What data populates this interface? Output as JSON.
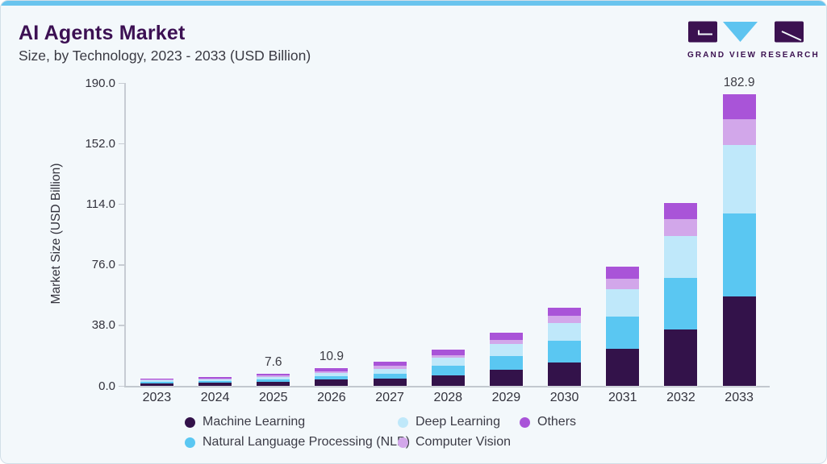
{
  "header": {
    "title": "AI Agents Market",
    "subtitle": "Size, by Technology, 2023 - 2033 (USD Billion)",
    "logo_text": "GRAND VIEW RESEARCH"
  },
  "colors": {
    "accent_strip": "#69c4ee",
    "title": "#3c1053",
    "logo_dark": "#3b1150",
    "logo_blue": "#5ec4f0",
    "axis_line": "#c7ccd3"
  },
  "chart_data": {
    "type": "bar",
    "stacked": true,
    "title": "AI Agents Market Size, by Technology, 2023 - 2033 (USD Billion)",
    "xlabel": "",
    "ylabel": "Market Size (USD Billion)",
    "ylim": [
      0,
      190
    ],
    "ytick_labels": [
      "0.0",
      "38.0",
      "76.0",
      "114.0",
      "152.0",
      "190.0"
    ],
    "grid": false,
    "legend_position": "bottom",
    "categories": [
      "2023",
      "2024",
      "2025",
      "2026",
      "2027",
      "2028",
      "2029",
      "2030",
      "2031",
      "2032",
      "2033"
    ],
    "series": [
      {
        "name": "Machine Learning",
        "color": "#33124a",
        "values": [
          1.5,
          1.9,
          2.5,
          4.2,
          4.7,
          6.7,
          10.1,
          14.7,
          23.2,
          35.4,
          56.0
        ]
      },
      {
        "name": "Natural Language Processing (NLP)",
        "color": "#5ac7f2",
        "values": [
          1.0,
          1.2,
          1.6,
          2.1,
          3.0,
          5.7,
          8.4,
          13.7,
          20.4,
          32.3,
          52.0
        ]
      },
      {
        "name": "Deep Learning",
        "color": "#bfe8fa",
        "values": [
          0.9,
          1.1,
          1.5,
          1.8,
          3.0,
          5.1,
          7.7,
          10.8,
          17.0,
          26.3,
          43.3
        ]
      },
      {
        "name": "Computer Vision",
        "color": "#d2a7ea",
        "values": [
          0.5,
          0.6,
          0.8,
          1.2,
          1.7,
          1.7,
          2.7,
          4.7,
          6.8,
          10.4,
          16.0
        ]
      },
      {
        "name": "Others",
        "color": "#a954d8",
        "values": [
          0.7,
          0.8,
          1.2,
          1.6,
          2.7,
          3.6,
          4.5,
          5.1,
          7.4,
          10.5,
          15.6
        ]
      }
    ],
    "value_labels": [
      "",
      "",
      "7.6",
      "10.9",
      "",
      "",
      "",
      "",
      "",
      "",
      "182.9"
    ]
  }
}
